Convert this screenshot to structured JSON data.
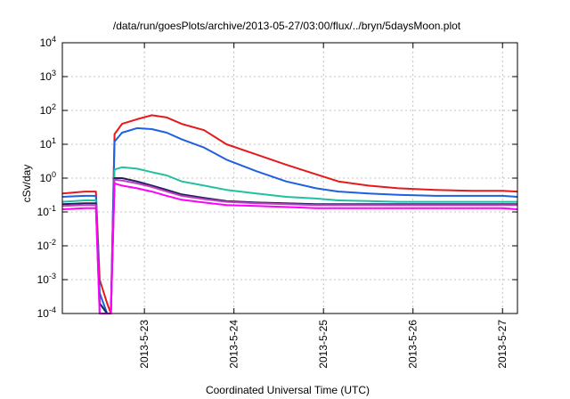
{
  "chart_data": {
    "type": "line",
    "title": "/data/run/goesPlots/archive/2013-05-27/03:00/flux/../bryn/5daysMoon.plot",
    "xlabel": "Coordinated Universal Time (UTC)",
    "ylabel": "cSv/day",
    "yscale": "log",
    "ylim": [
      0.0001,
      10000
    ],
    "xlim": [
      "2013-05-22T02:00",
      "2013-05-27T04:00"
    ],
    "grid": true,
    "x_ticks": [
      {
        "label": "2013-5-23",
        "t": "2013-05-23T00:00"
      },
      {
        "label": "2013-5-24",
        "t": "2013-05-24T00:00"
      },
      {
        "label": "2013-5-25",
        "t": "2013-05-25T00:00"
      },
      {
        "label": "2013-5-26",
        "t": "2013-05-26T00:00"
      },
      {
        "label": "2013-5-27",
        "t": "2013-05-27T00:00"
      }
    ],
    "y_ticks": [
      {
        "base": "10",
        "exp": "-4",
        "value": 0.0001
      },
      {
        "base": "10",
        "exp": "-3",
        "value": 0.001
      },
      {
        "base": "10",
        "exp": "-2",
        "value": 0.01
      },
      {
        "base": "10",
        "exp": "-1",
        "value": 0.1
      },
      {
        "base": "10",
        "exp": "0",
        "value": 1
      },
      {
        "base": "10",
        "exp": "1",
        "value": 10
      },
      {
        "base": "10",
        "exp": "2",
        "value": 100
      },
      {
        "base": "10",
        "exp": "3",
        "value": 1000
      },
      {
        "base": "10",
        "exp": "4",
        "value": 10000
      }
    ],
    "x": [
      "2013-05-22T02:00",
      "2013-05-22T08:00",
      "2013-05-22T11:00",
      "2013-05-22T12:00",
      "2013-05-22T14:00",
      "2013-05-22T15:00",
      "2013-05-22T16:00",
      "2013-05-22T18:00",
      "2013-05-22T22:00",
      "2013-05-23T02:00",
      "2013-05-23T06:00",
      "2013-05-23T10:00",
      "2013-05-23T16:00",
      "2013-05-23T22:00",
      "2013-05-24T06:00",
      "2013-05-24T14:00",
      "2013-05-24T22:00",
      "2013-05-25T04:00",
      "2013-05-25T12:00",
      "2013-05-25T20:00",
      "2013-05-26T06:00",
      "2013-05-26T16:00",
      "2013-05-27T00:00",
      "2013-05-27T04:00"
    ],
    "series": [
      {
        "color": "#e41a1c",
        "values": [
          0.35,
          0.4,
          0.4,
          0.001,
          0.0002,
          0.0001,
          20,
          40,
          55,
          72,
          62,
          40,
          26,
          10,
          5,
          2.5,
          1.3,
          0.8,
          0.6,
          0.5,
          0.45,
          0.42,
          0.42,
          0.4
        ]
      },
      {
        "color": "#1f5fe0",
        "values": [
          0.28,
          0.3,
          0.3,
          0.0004,
          0.0001,
          0.0001,
          12,
          22,
          30,
          28,
          22,
          14,
          8,
          3.5,
          1.6,
          0.8,
          0.5,
          0.4,
          0.35,
          0.32,
          0.3,
          0.3,
          0.3,
          0.28
        ]
      },
      {
        "color": "#20c0a0",
        "values": [
          0.2,
          0.22,
          0.22,
          0.0002,
          0.0001,
          0.0001,
          1.8,
          2.1,
          1.9,
          1.5,
          1.2,
          0.8,
          0.6,
          0.45,
          0.35,
          0.28,
          0.25,
          0.22,
          0.21,
          0.2,
          0.2,
          0.2,
          0.2,
          0.2
        ]
      },
      {
        "color": "#202060",
        "values": [
          0.17,
          0.18,
          0.18,
          0.0002,
          0.0001,
          0.0001,
          1.0,
          1.0,
          0.8,
          0.6,
          0.45,
          0.33,
          0.26,
          0.21,
          0.19,
          0.18,
          0.17,
          0.17,
          0.17,
          0.17,
          0.17,
          0.17,
          0.17,
          0.17
        ]
      },
      {
        "color": "#c040c0",
        "values": [
          0.15,
          0.16,
          0.16,
          0.0001,
          0.0001,
          0.0001,
          0.9,
          0.85,
          0.7,
          0.55,
          0.4,
          0.3,
          0.24,
          0.2,
          0.18,
          0.17,
          0.16,
          0.16,
          0.16,
          0.16,
          0.16,
          0.16,
          0.16,
          0.16
        ]
      },
      {
        "color": "#ff00ff",
        "values": [
          0.12,
          0.13,
          0.13,
          0.0001,
          0.0001,
          0.0001,
          0.7,
          0.6,
          0.5,
          0.4,
          0.3,
          0.23,
          0.19,
          0.16,
          0.15,
          0.14,
          0.13,
          0.13,
          0.13,
          0.13,
          0.13,
          0.13,
          0.13,
          0.12
        ]
      }
    ]
  }
}
